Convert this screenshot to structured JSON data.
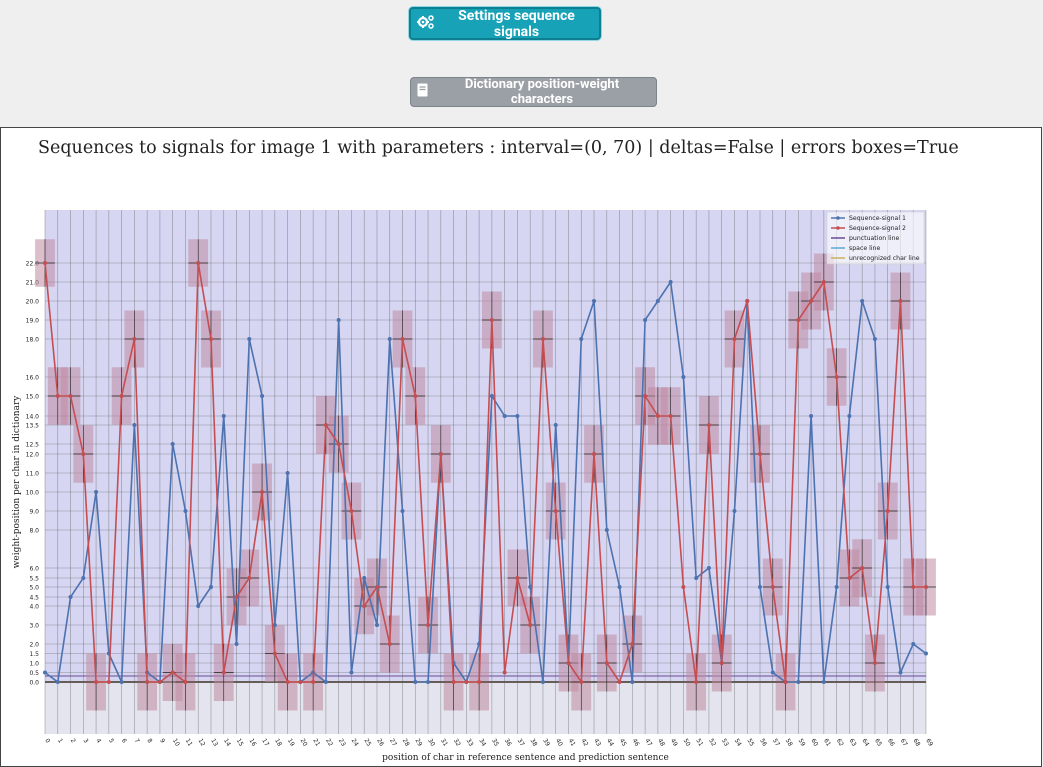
{
  "toolbar": {
    "settings_label": "Settings sequence signals",
    "settings_icon": "cogs-icon",
    "dictionary_label": "Dictionary position-weight characters",
    "dictionary_icon": "book-icon"
  },
  "colors": {
    "teal_button": "#17a2b8",
    "gray_button": "#9aa0a6",
    "plot_background": "#d6d6f2",
    "series1": "#4c72b0",
    "series2": "#c44e52",
    "error_box": "#c08aa0",
    "unrecognized_line": "#c9b25a",
    "punctuation_line": "#6a4c93",
    "space_line": "#5aa9d6"
  },
  "chart_data": {
    "type": "line",
    "title": "Sequences to signals for image 1 with parameters : interval=(0, 70) | deltas=False | errors boxes=True",
    "xlabel": "position of char in reference sentence and prediction sentence",
    "ylabel": "weight-position per char in dictionary",
    "xlim": [
      0,
      69
    ],
    "x": [
      0,
      1,
      2,
      3,
      4,
      5,
      6,
      7,
      8,
      9,
      10,
      11,
      12,
      13,
      14,
      15,
      16,
      17,
      18,
      19,
      20,
      21,
      22,
      23,
      24,
      25,
      26,
      27,
      28,
      29,
      30,
      31,
      32,
      33,
      34,
      35,
      36,
      37,
      38,
      39,
      40,
      41,
      42,
      43,
      44,
      45,
      46,
      47,
      48,
      49,
      50,
      51,
      52,
      53,
      54,
      55,
      56,
      57,
      58,
      59,
      60,
      61,
      62,
      63,
      64,
      65,
      66,
      67,
      68,
      69
    ],
    "y_tick_labels": [
      "0.0",
      "0.5",
      "1.0",
      "1.5",
      "2.0",
      "3.0",
      "4.0",
      "4.5",
      "5.0",
      "5.5",
      "6.0",
      "8.0",
      "9.0",
      "10.0",
      "11.0",
      "12.0",
      "12.5",
      "13.5",
      "14.0",
      "15.0",
      "16.0",
      "18.0",
      "19.0",
      "20.0",
      "21.0",
      "22.0"
    ],
    "grid": true,
    "legend_position": "top-right",
    "legend": [
      "Sequence-signal 1",
      "Sequence-signal 2",
      "punctuation line",
      "space line",
      "unrecognized char line"
    ],
    "series": [
      {
        "name": "Sequence-signal 1",
        "values": [
          0.5,
          0,
          4.5,
          5.5,
          10,
          1.5,
          0,
          13.5,
          0.5,
          0,
          12.5,
          9,
          4,
          5,
          14,
          2,
          18,
          15,
          3,
          11,
          0,
          0.5,
          0,
          19,
          0.5,
          5.5,
          3,
          18,
          9,
          0,
          0,
          12,
          1,
          0,
          2,
          15,
          14,
          14,
          5,
          0,
          13.5,
          1,
          18,
          20,
          8,
          5,
          0,
          19,
          20,
          21,
          16,
          5.5,
          6,
          1,
          9,
          20,
          5,
          0.5,
          0,
          0,
          14,
          0,
          5,
          14,
          20,
          18,
          5,
          0.5,
          2,
          1.5
        ]
      },
      {
        "name": "Sequence-signal 2",
        "values": [
          22,
          15,
          15,
          12,
          0,
          0,
          15,
          18,
          0,
          0,
          0.5,
          0,
          22,
          18,
          0.5,
          4.5,
          5.5,
          10,
          1.5,
          0,
          0,
          0,
          13.5,
          12.5,
          9,
          4,
          5,
          2,
          18,
          15,
          3,
          12,
          0,
          0,
          0,
          19,
          0.5,
          5.5,
          3,
          18,
          9,
          1,
          0,
          12,
          1,
          0,
          2,
          15,
          14,
          14,
          5,
          0,
          13.5,
          1,
          18,
          20,
          12,
          5,
          0,
          19,
          20,
          21,
          16,
          5.5,
          6,
          1,
          9,
          20,
          5,
          5
        ]
      }
    ],
    "error_boxes": [
      0,
      1,
      2,
      3,
      4,
      6,
      7,
      8,
      10,
      11,
      12,
      13,
      14,
      15,
      16,
      17,
      18,
      19,
      21,
      22,
      23,
      24,
      25,
      26,
      27,
      28,
      29,
      30,
      31,
      32,
      34,
      35,
      37,
      38,
      39,
      40,
      41,
      42,
      43,
      44,
      46,
      47,
      48,
      49,
      51,
      52,
      53,
      54,
      56,
      57,
      58,
      59,
      60,
      61,
      62,
      63,
      64,
      65,
      66,
      67,
      68,
      69
    ],
    "reference_lines": {
      "unrecognized char line": -1,
      "punctuation line": 0,
      "space line": 0
    }
  }
}
